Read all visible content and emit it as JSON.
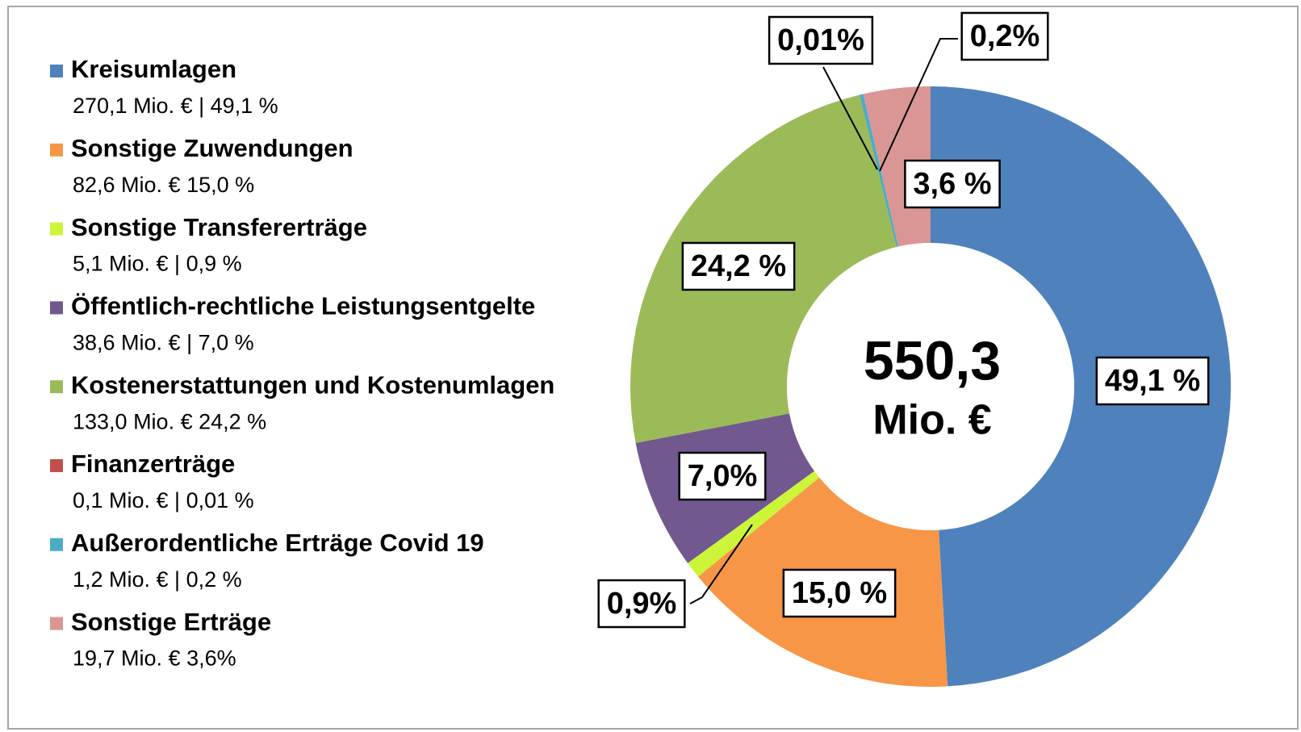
{
  "chart_data": {
    "type": "pie",
    "donut": true,
    "categories": [
      "Kreisumlagen",
      "Sonstige Zuwendungen",
      "Sonstige Transfererträge",
      "Öffentlich-rechtliche Leistungsentgelte",
      "Kostenerstattungen und Kostenumlagen",
      "Finanzerträge",
      "Außerordentliche Erträge Covid 19",
      "Sonstige Erträge"
    ],
    "legend_details": [
      "270,1 Mio. € | 49,1 %",
      "82,6 Mio. € 15,0 %",
      "5,1 Mio. € | 0,9 %",
      "38,6 Mio. € | 7,0 %",
      "133,0 Mio. € 24,2 %",
      "0,1 Mio. € | 0,01 %",
      "1,2 Mio. € | 0,2 %",
      "19,7 Mio. € 3,6%"
    ],
    "values": [
      49.1,
      15.0,
      0.9,
      7.0,
      24.2,
      0.01,
      0.2,
      3.6
    ],
    "value_labels": [
      "49,1 %",
      "15,0 %",
      "0,9%",
      "7,0%",
      "24,2 %",
      "0,01%",
      "0,2%",
      "3,6 %"
    ],
    "colors": [
      "#4f81bd",
      "#f79646",
      "#ccf53a",
      "#71588f",
      "#9bbb59",
      "#c0504d",
      "#4bacc6",
      "#d99694"
    ],
    "center_label": "550,3",
    "center_unit": "Mio. €",
    "legend": "left"
  }
}
